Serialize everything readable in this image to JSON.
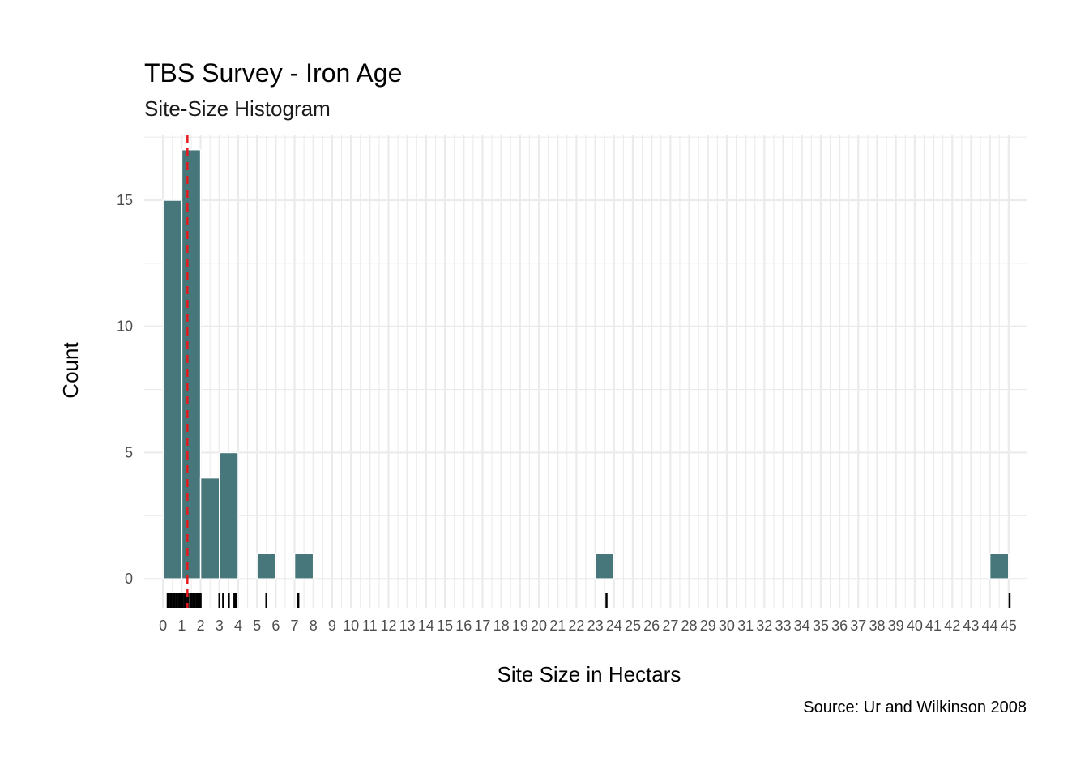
{
  "chart_data": {
    "type": "bar",
    "title": "TBS Survey - Iron Age",
    "subtitle": "Site-Size Histogram",
    "xlabel": "Site Size in Hectars",
    "ylabel": "Count",
    "caption": "Source: Ur and Wilkinson 2008",
    "xlim": [
      -1,
      46
    ],
    "ylim": [
      -1.15,
      17.6
    ],
    "x_ticks": [
      0,
      1,
      2,
      3,
      4,
      5,
      6,
      7,
      8,
      9,
      10,
      11,
      12,
      13,
      14,
      15,
      16,
      17,
      18,
      19,
      20,
      21,
      22,
      23,
      24,
      25,
      26,
      27,
      28,
      29,
      30,
      31,
      32,
      33,
      34,
      35,
      36,
      37,
      38,
      39,
      40,
      41,
      42,
      43,
      44,
      45
    ],
    "y_ticks": [
      0,
      5,
      10,
      15
    ],
    "grid": true,
    "bin_width": 1,
    "bins": [
      {
        "x": 0.5,
        "count": 15
      },
      {
        "x": 1.5,
        "count": 17
      },
      {
        "x": 2.5,
        "count": 4
      },
      {
        "x": 3.5,
        "count": 5
      },
      {
        "x": 5.5,
        "count": 1
      },
      {
        "x": 7.5,
        "count": 1
      },
      {
        "x": 23.5,
        "count": 1
      },
      {
        "x": 44.5,
        "count": 1
      }
    ],
    "rug": [
      0.25,
      0.3,
      0.4,
      0.45,
      0.55,
      0.6,
      0.7,
      0.75,
      0.85,
      0.9,
      1.0,
      1.05,
      1.15,
      1.2,
      1.3,
      1.35,
      1.5,
      1.6,
      1.7,
      1.8,
      1.9,
      2.0,
      3.0,
      3.2,
      3.5,
      3.8,
      3.9,
      5.5,
      7.2,
      23.6,
      45.05
    ],
    "median": 1.3,
    "colors": {
      "bar_fill": "#47777a",
      "bar_outline": "#ffffff",
      "median_line": "#e41a1c",
      "rug": "#000000",
      "grid": "#ebebeb"
    }
  }
}
